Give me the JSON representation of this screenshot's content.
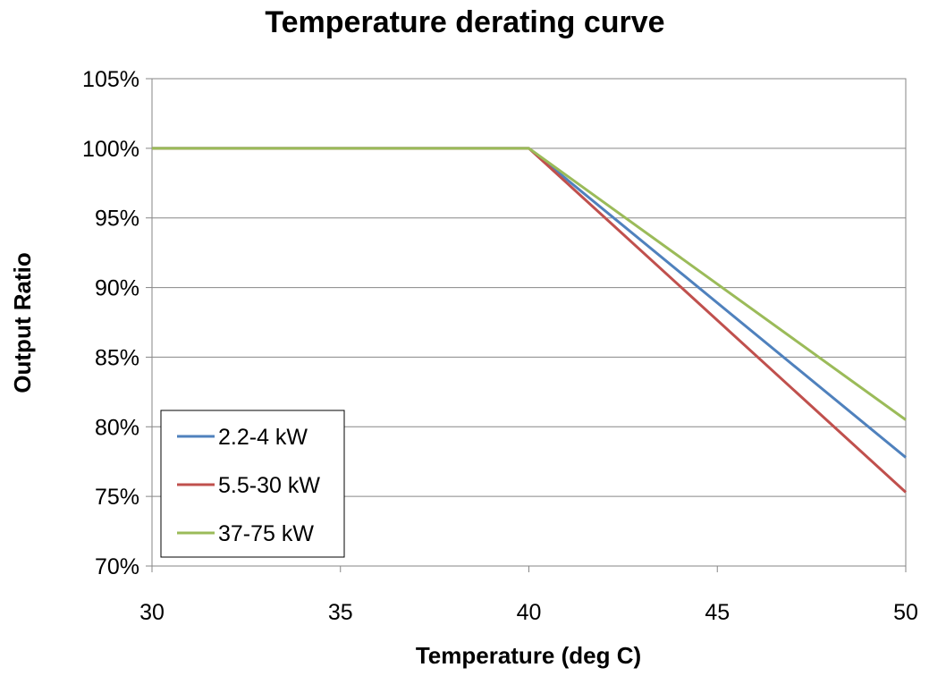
{
  "chart_data": {
    "type": "line",
    "title": "Temperature derating curve",
    "xlabel": "Temperature (deg C)",
    "ylabel": "Output Ratio",
    "xlim": [
      30,
      50
    ],
    "ylim": [
      70,
      105
    ],
    "x_ticks": [
      30,
      35,
      40,
      45,
      50
    ],
    "y_ticks": [
      70,
      75,
      80,
      85,
      90,
      95,
      100,
      105
    ],
    "x_tick_labels": [
      "30",
      "35",
      "40",
      "45",
      "50"
    ],
    "y_tick_labels": [
      "70%",
      "75%",
      "80%",
      "85%",
      "90%",
      "95%",
      "100%",
      "105%"
    ],
    "grid": "horizontal",
    "legend_position": "bottom-left",
    "series": [
      {
        "name": "2.2-4 kW",
        "color": "#4F81BD",
        "points": [
          [
            30,
            100
          ],
          [
            40,
            100
          ],
          [
            50,
            77.8
          ]
        ]
      },
      {
        "name": "5.5-30 kW",
        "color": "#C0504D",
        "points": [
          [
            30,
            100
          ],
          [
            40,
            100
          ],
          [
            50,
            75.3
          ]
        ]
      },
      {
        "name": "37-75 kW",
        "color": "#9BBB59",
        "points": [
          [
            30,
            100
          ],
          [
            40,
            100
          ],
          [
            50,
            80.5
          ]
        ]
      }
    ]
  }
}
